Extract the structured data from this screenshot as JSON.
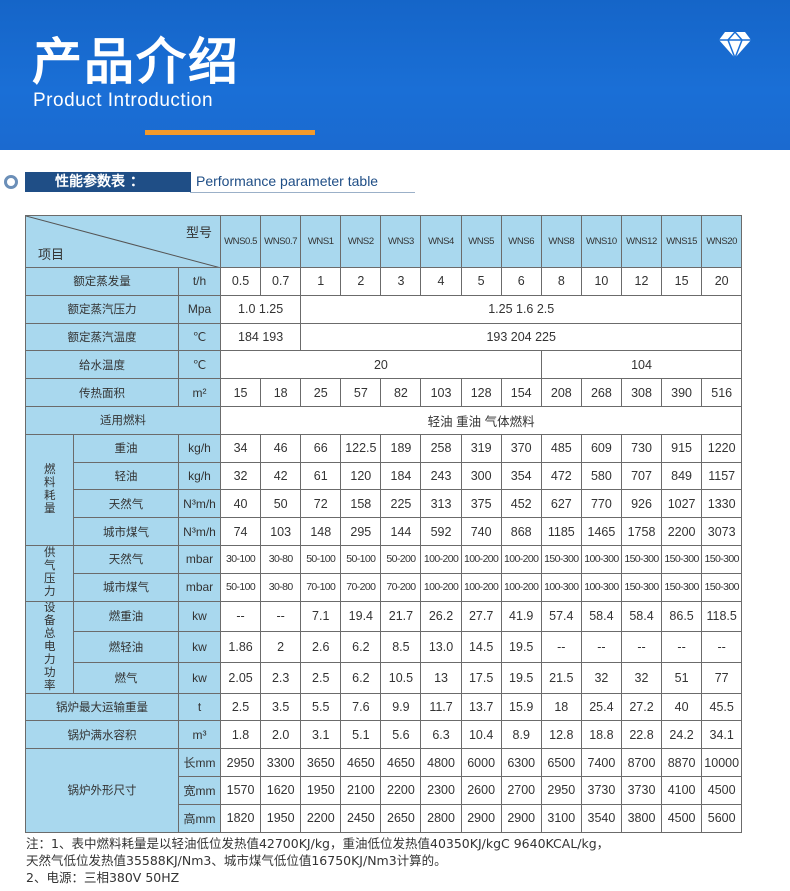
{
  "header": {
    "title": "产品介绍",
    "subtitle": "Product Introduction",
    "accent": "#f39a2b",
    "bg": "#1a6fd6",
    "icon": "diamond-icon"
  },
  "section": {
    "title_cn": "性能参数表 ：",
    "title_en": "Performance parameter table"
  },
  "table": {
    "corner_top": "型号",
    "corner_bottom": "项目",
    "models": [
      "WNS0.5",
      "WNS0.7",
      "WNS1",
      "WNS2",
      "WNS3",
      "WNS4",
      "WNS5",
      "WNS6",
      "WNS8",
      "WNS10",
      "WNS12",
      "WNS15",
      "WNS20"
    ],
    "rows": [
      {
        "label": "额定蒸发量",
        "unit": "t/h",
        "cells": [
          "0.5",
          "0.7",
          "1",
          "2",
          "3",
          "4",
          "5",
          "6",
          "8",
          "10",
          "12",
          "15",
          "20"
        ]
      },
      {
        "label": "额定蒸汽压力",
        "unit": "Mpa",
        "cells": [
          {
            "v": "1.0 1.25",
            "span": 2
          },
          {
            "v": "1.25 1.6 2.5",
            "span": 11
          }
        ]
      },
      {
        "label": "额定蒸汽温度",
        "unit": "℃",
        "cells": [
          {
            "v": "184 193",
            "span": 2
          },
          {
            "v": "193 204 225",
            "span": 11
          }
        ]
      },
      {
        "label": "给水温度",
        "unit": "℃",
        "cells": [
          {
            "v": "20",
            "span": 8
          },
          {
            "v": "104",
            "span": 5
          }
        ]
      },
      {
        "label": "传热面积",
        "unit": "m²",
        "cells": [
          "15",
          "18",
          "25",
          "57",
          "82",
          "103",
          "128",
          "154",
          "208",
          "268",
          "308",
          "390",
          "516"
        ]
      },
      {
        "label": "适用燃料",
        "unit": "",
        "cells": [
          {
            "v": "轻油  重油  气体燃料",
            "span": 13
          }
        ]
      },
      {
        "group": "燃料耗量",
        "groupspan": 4,
        "label": "重油",
        "unit": "kg/h",
        "cells": [
          "34",
          "46",
          "66",
          "122.5",
          "189",
          "258",
          "319",
          "370",
          "485",
          "609",
          "730",
          "915",
          "1220"
        ]
      },
      {
        "label": "轻油",
        "unit": "kg/h",
        "cells": [
          "32",
          "42",
          "61",
          "120",
          "184",
          "243",
          "300",
          "354",
          "472",
          "580",
          "707",
          "849",
          "1157"
        ]
      },
      {
        "label": "天然气",
        "unit": "N³m/h",
        "cells": [
          "40",
          "50",
          "72",
          "158",
          "225",
          "313",
          "375",
          "452",
          "627",
          "770",
          "926",
          "1027",
          "1330"
        ]
      },
      {
        "label": "城市煤气",
        "unit": "N³m/h",
        "cells": [
          "74",
          "103",
          "148",
          "295",
          "144",
          "592",
          "740",
          "868",
          "1185",
          "1465",
          "1758",
          "2200",
          "3073"
        ]
      },
      {
        "group": "供气压力",
        "groupspan": 2,
        "label": "天然气",
        "unit": "mbar",
        "small": true,
        "cells": [
          "30-100",
          "30-80",
          "50-100",
          "50-100",
          "50-200",
          "100-200",
          "100-200",
          "100-200",
          "150-300",
          "100-300",
          "150-300",
          "150-300",
          "150-300"
        ]
      },
      {
        "label": "城市煤气",
        "unit": "mbar",
        "small": true,
        "cells": [
          "50-100",
          "30-80",
          "70-100",
          "70-200",
          "70-200",
          "100-200",
          "100-200",
          "100-200",
          "100-300",
          "100-300",
          "150-300",
          "150-300",
          "150-300"
        ]
      },
      {
        "group": "设备总电力功率",
        "groupspan": 3,
        "label": "燃重油",
        "unit": "kw",
        "cells": [
          "--",
          "--",
          "7.1",
          "19.4",
          "21.7",
          "26.2",
          "27.7",
          "41.9",
          "57.4",
          "58.4",
          "58.4",
          "86.5",
          "118.5"
        ]
      },
      {
        "label": "燃轻油",
        "unit": "kw",
        "cells": [
          "1.86",
          "2",
          "2.6",
          "6.2",
          "8.5",
          "13.0",
          "14.5",
          "19.5",
          "--",
          "--",
          "--",
          "--",
          "--"
        ]
      },
      {
        "label": "燃气",
        "unit": "kw",
        "cells": [
          "2.05",
          "2.3",
          "2.5",
          "6.2",
          "10.5",
          "13",
          "17.5",
          "19.5",
          "21.5",
          "32",
          "32",
          "51",
          "77"
        ]
      },
      {
        "wide": "锅炉最大运输重量",
        "unit": "t",
        "cells": [
          "2.5",
          "3.5",
          "5.5",
          "7.6",
          "9.9",
          "11.7",
          "13.7",
          "15.9",
          "18",
          "25.4",
          "27.2",
          "40",
          "45.5"
        ]
      },
      {
        "wide": "锅炉满水容积",
        "unit": "m³",
        "cells": [
          "1.8",
          "2.0",
          "3.1",
          "5.1",
          "5.6",
          "6.3",
          "10.4",
          "8.9",
          "12.8",
          "18.8",
          "22.8",
          "24.2",
          "34.1"
        ]
      },
      {
        "wide": "锅炉外形尺寸",
        "widespan": 3,
        "unit": "长mm",
        "cells": [
          "2950",
          "3300",
          "3650",
          "4650",
          "4650",
          "4800",
          "6000",
          "6300",
          "6500",
          "7400",
          "8700",
          "8870",
          "10000"
        ]
      },
      {
        "unit": "宽mm",
        "cells": [
          "1570",
          "1620",
          "1950",
          "2100",
          "2200",
          "2300",
          "2600",
          "2700",
          "2950",
          "3730",
          "3730",
          "4100",
          "4500"
        ]
      },
      {
        "unit": "高mm",
        "cells": [
          "1820",
          "1950",
          "2200",
          "2450",
          "2650",
          "2800",
          "2900",
          "2900",
          "3100",
          "3540",
          "3800",
          "4500",
          "5600"
        ]
      }
    ]
  },
  "notes": [
    "注：1、表中燃料耗量是以轻油低位发热值42700KJ/kg，重油低位发热值40350KJ/kgC 9640KCAL/kg，",
    "天然气低位发热值35588KJ/Nm3、城市煤气低位值16750KJ/Nm3计算的。",
    "2、电源：三相380V   50HZ"
  ]
}
